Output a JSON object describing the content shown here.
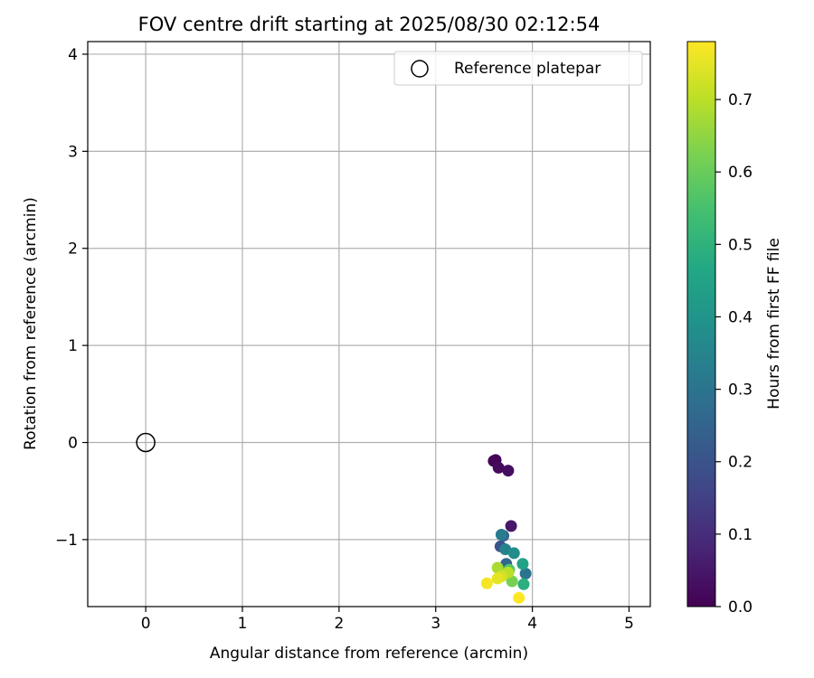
{
  "chart_data": {
    "type": "scatter",
    "title": "FOV centre drift starting at 2025/08/30 02:12:54",
    "xlabel": "Angular distance from reference (arcmin)",
    "ylabel": "Rotation from reference (arcmin)",
    "xlim": [
      -0.6,
      5.22
    ],
    "ylim": [
      -1.69,
      4.13
    ],
    "x_ticks": [
      0,
      1,
      2,
      3,
      4,
      5
    ],
    "y_ticks": [
      -1,
      0,
      1,
      2,
      3,
      4
    ],
    "x_tick_labels": [
      "0",
      "1",
      "2",
      "3",
      "4",
      "5"
    ],
    "y_tick_labels": [
      "−1",
      "0",
      "1",
      "2",
      "3",
      "4"
    ],
    "grid": true,
    "legend": {
      "position": "top-right",
      "label": "Reference platepar",
      "marker": "open-circle"
    },
    "reference_point": {
      "x": 0,
      "y": 0
    },
    "colorbar": {
      "label": "Hours from first FF file",
      "range": [
        0.0,
        0.78
      ],
      "ticks": [
        0.0,
        0.1,
        0.2,
        0.3,
        0.4,
        0.5,
        0.6,
        0.7
      ],
      "tick_labels": [
        "0.0",
        "0.1",
        "0.2",
        "0.3",
        "0.4",
        "0.5",
        "0.6",
        "0.7"
      ],
      "colormap": "viridis"
    },
    "points": [
      {
        "x": 3.6,
        "y": -0.19,
        "t": 0.0
      },
      {
        "x": 3.62,
        "y": -0.18,
        "t": 0.01
      },
      {
        "x": 3.65,
        "y": -0.26,
        "t": 0.02
      },
      {
        "x": 3.75,
        "y": -0.29,
        "t": 0.03
      },
      {
        "x": 3.78,
        "y": -0.86,
        "t": 0.05
      },
      {
        "x": 3.67,
        "y": -1.07,
        "t": 0.2
      },
      {
        "x": 3.7,
        "y": -0.96,
        "t": 0.24
      },
      {
        "x": 3.73,
        "y": -1.25,
        "t": 0.26
      },
      {
        "x": 3.93,
        "y": -1.35,
        "t": 0.3
      },
      {
        "x": 3.68,
        "y": -0.95,
        "t": 0.32
      },
      {
        "x": 3.72,
        "y": -1.1,
        "t": 0.34
      },
      {
        "x": 3.81,
        "y": -1.14,
        "t": 0.38
      },
      {
        "x": 3.9,
        "y": -1.25,
        "t": 0.45
      },
      {
        "x": 3.91,
        "y": -1.46,
        "t": 0.49
      },
      {
        "x": 3.76,
        "y": -1.31,
        "t": 0.57
      },
      {
        "x": 3.79,
        "y": -1.43,
        "t": 0.62
      },
      {
        "x": 3.64,
        "y": -1.29,
        "t": 0.68
      },
      {
        "x": 3.75,
        "y": -1.34,
        "t": 0.7
      },
      {
        "x": 3.68,
        "y": -1.38,
        "t": 0.73
      },
      {
        "x": 3.64,
        "y": -1.4,
        "t": 0.75
      },
      {
        "x": 3.53,
        "y": -1.45,
        "t": 0.77
      },
      {
        "x": 3.86,
        "y": -1.6,
        "t": 0.78
      }
    ]
  }
}
